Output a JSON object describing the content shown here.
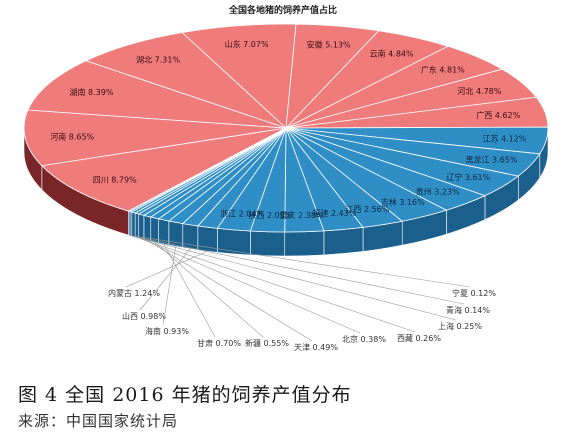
{
  "chart_data": {
    "type": "pie",
    "title": "全国各地猪的饲养产值占比",
    "unit": "%",
    "colors": {
      "red_top": "#f07b7b",
      "red_side": "#7a2628",
      "blue_top": "#2f8ec6",
      "blue_side": "#1b5f8c"
    },
    "slices": [
      {
        "label": "四川 8.79%",
        "name": "四川",
        "value": 8.79,
        "group": "red"
      },
      {
        "label": "河南 8.65%",
        "name": "河南",
        "value": 8.65,
        "group": "red"
      },
      {
        "label": "湖南 8.39%",
        "name": "湖南",
        "value": 8.39,
        "group": "red"
      },
      {
        "label": "湖北 7.31%",
        "name": "湖北",
        "value": 7.31,
        "group": "red"
      },
      {
        "label": "山东 7.07%",
        "name": "山东",
        "value": 7.07,
        "group": "red"
      },
      {
        "label": "安徽 5.13%",
        "name": "安徽",
        "value": 5.13,
        "group": "red"
      },
      {
        "label": "云南 4.84%",
        "name": "云南",
        "value": 4.84,
        "group": "red"
      },
      {
        "label": "广东 4.81%",
        "name": "广东",
        "value": 4.81,
        "group": "red"
      },
      {
        "label": "河北 4.78%",
        "name": "河北",
        "value": 4.78,
        "group": "red"
      },
      {
        "label": "广西 4.62%",
        "name": "广西",
        "value": 4.62,
        "group": "red"
      },
      {
        "label": "江苏 4.12%",
        "name": "江苏",
        "value": 4.12,
        "group": "blue"
      },
      {
        "label": "黑龙江 3.65%",
        "name": "黑龙江",
        "value": 3.65,
        "group": "blue"
      },
      {
        "label": "辽宁 3.61%",
        "name": "辽宁",
        "value": 3.61,
        "group": "blue"
      },
      {
        "label": "贵州 3.23%",
        "name": "贵州",
        "value": 3.23,
        "group": "blue"
      },
      {
        "label": "吉林 3.16%",
        "name": "吉林",
        "value": 3.16,
        "group": "blue"
      },
      {
        "label": "江西 2.56%",
        "name": "江西",
        "value": 2.56,
        "group": "blue"
      },
      {
        "label": "福建 2.43%",
        "name": "福建",
        "value": 2.43,
        "group": "blue"
      },
      {
        "label": "重庆 2.38%",
        "name": "重庆",
        "value": 2.38,
        "group": "blue"
      },
      {
        "label": "陕西 2.09%",
        "name": "陕西",
        "value": 2.09,
        "group": "blue"
      },
      {
        "label": "浙江 2.04%",
        "name": "浙江",
        "value": 2.04,
        "group": "blue"
      },
      {
        "label": "内蒙古 1.24%",
        "name": "内蒙古",
        "value": 1.24,
        "group": "blue"
      },
      {
        "label": "山西 0.98%",
        "name": "山西",
        "value": 0.98,
        "group": "blue"
      },
      {
        "label": "海南 0.93%",
        "name": "海南",
        "value": 0.93,
        "group": "blue"
      },
      {
        "label": "甘肃 0.70%",
        "name": "甘肃",
        "value": 0.7,
        "group": "blue"
      },
      {
        "label": "新疆 0.55%",
        "name": "新疆",
        "value": 0.55,
        "group": "blue"
      },
      {
        "label": "天津 0.49%",
        "name": "天津",
        "value": 0.49,
        "group": "blue"
      },
      {
        "label": "北京 0.38%",
        "name": "北京",
        "value": 0.38,
        "group": "blue"
      },
      {
        "label": "西藏 0.26%",
        "name": "西藏",
        "value": 0.26,
        "group": "blue"
      },
      {
        "label": "上海 0.25%",
        "name": "上海",
        "value": 0.25,
        "group": "blue"
      },
      {
        "label": "青海 0.14%",
        "name": "青海",
        "value": 0.14,
        "group": "blue"
      },
      {
        "label": "宁夏 0.12%",
        "name": "宁夏",
        "value": 0.12,
        "group": "blue"
      }
    ]
  },
  "figure": {
    "caption": "图 4 全国 2016 年猪的饲养产值分布",
    "source": "来源：中国国家统计局"
  }
}
